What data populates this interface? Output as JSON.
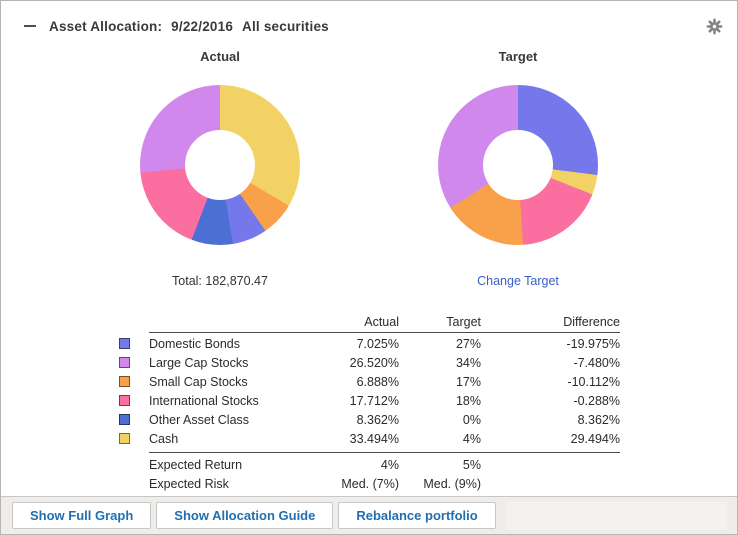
{
  "header": {
    "title": "Asset Allocation:",
    "date": "9/22/2016",
    "scope": "All securities"
  },
  "captions": {
    "actual_total": "Total: 182,870.47",
    "target_link": "Change Target"
  },
  "chart_data": [
    {
      "type": "pie",
      "donut": true,
      "title": "Actual",
      "order": "clockwise-from-top",
      "total": "182,870.47",
      "slices": [
        {
          "label": "Cash",
          "value": 33.494,
          "color": "#f2d264"
        },
        {
          "label": "Small Cap Stocks",
          "value": 6.888,
          "color": "#f9a04a"
        },
        {
          "label": "Domestic Bonds",
          "value": 7.025,
          "color": "#7478ea"
        },
        {
          "label": "Other Asset Class",
          "value": 8.362,
          "color": "#4b6fd2"
        },
        {
          "label": "International Stocks",
          "value": 17.712,
          "color": "#fa6f9f"
        },
        {
          "label": "Large Cap Stocks",
          "value": 26.52,
          "color": "#d188ec"
        }
      ]
    },
    {
      "type": "pie",
      "donut": true,
      "title": "Target",
      "order": "clockwise-from-top",
      "slices": [
        {
          "label": "Domestic Bonds",
          "value": 27,
          "color": "#7478ea"
        },
        {
          "label": "Cash",
          "value": 4,
          "color": "#f2d264"
        },
        {
          "label": "International Stocks",
          "value": 18,
          "color": "#fa6f9f"
        },
        {
          "label": "Small Cap Stocks",
          "value": 17,
          "color": "#f9a04a"
        },
        {
          "label": "Large Cap Stocks",
          "value": 34,
          "color": "#d188ec"
        },
        {
          "label": "Other Asset Class",
          "value": 0,
          "color": "#4b6fd2"
        }
      ]
    }
  ],
  "table": {
    "header": {
      "actual": "Actual",
      "target": "Target",
      "difference": "Difference"
    },
    "assets": [
      {
        "name": "Domestic Bonds",
        "color": "#7478ea",
        "actual": "7.025%",
        "target": "27%",
        "difference": "-19.975%"
      },
      {
        "name": "Large Cap Stocks",
        "color": "#d188ec",
        "actual": "26.520%",
        "target": "34%",
        "difference": "-7.480%"
      },
      {
        "name": "Small Cap Stocks",
        "color": "#f9a04a",
        "actual": "6.888%",
        "target": "17%",
        "difference": "-10.112%"
      },
      {
        "name": "International Stocks",
        "color": "#fa6f9f",
        "actual": "17.712%",
        "target": "18%",
        "difference": "-0.288%"
      },
      {
        "name": "Other Asset Class",
        "color": "#4b6fd2",
        "actual": "8.362%",
        "target": "0%",
        "difference": "8.362%"
      },
      {
        "name": "Cash",
        "color": "#f2d264",
        "actual": "33.494%",
        "target": "4%",
        "difference": "29.494%"
      }
    ],
    "summary": [
      {
        "name": "Expected Return",
        "actual": "4%",
        "target": "5%",
        "difference": ""
      },
      {
        "name": "Expected Risk",
        "actual": "Med. (7%)",
        "target": "Med. (9%)",
        "difference": ""
      }
    ]
  },
  "footer": {
    "buttons": [
      "Show Full Graph",
      "Show Allocation Guide",
      "Rebalance portfolio"
    ]
  },
  "colors": {
    "link": "#3c5ec6",
    "button_text": "#1f6fb2",
    "header_text": "#3a3a3a",
    "strip_bg": "#efedec"
  }
}
